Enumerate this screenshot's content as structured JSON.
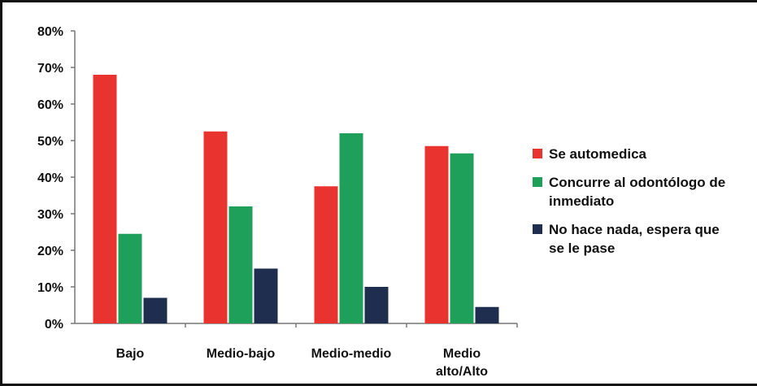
{
  "chart_data": {
    "type": "bar",
    "categories": [
      "Bajo",
      "Medio-bajo",
      "Medio-medio",
      "Medio\nalto/Alto"
    ],
    "series": [
      {
        "name": "Se automedica",
        "color": "#e8332e",
        "values": [
          68,
          52.5,
          37.5,
          48.5
        ]
      },
      {
        "name": "Concurre al odontólogo de\ninmediato",
        "color": "#1fa05a",
        "values": [
          24.5,
          32,
          52,
          46.5
        ]
      },
      {
        "name": "No hace nada, espera que\nse le pase",
        "color": "#1f2d4e",
        "values": [
          7,
          15,
          10,
          4.5
        ]
      }
    ],
    "y_tick_labels": [
      "0%",
      "10%",
      "20%",
      "30%",
      "40%",
      "50%",
      "60%",
      "70%",
      "80%"
    ],
    "ylim": [
      0,
      80
    ],
    "grid": false,
    "legend_position": "right"
  }
}
